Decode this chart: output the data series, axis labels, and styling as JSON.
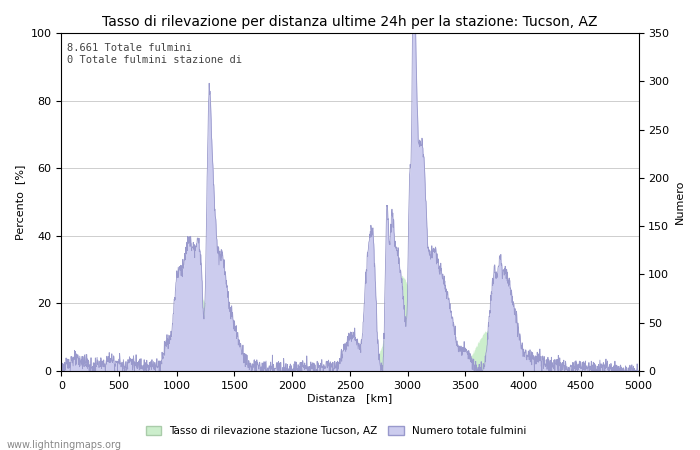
{
  "title": "Tasso di rilevazione per distanza ultime 24h per la stazione: Tucson, AZ",
  "xlabel": "Distanza   [km]",
  "ylabel_left": "Percento  [%]",
  "ylabel_right": "Numero",
  "annotation_text": "8.661 Totale fulmini\n0 Totale fulmini stazione di",
  "xlim": [
    0,
    5000
  ],
  "ylim_left": [
    0,
    100
  ],
  "ylim_right": [
    0,
    350
  ],
  "xticks": [
    0,
    500,
    1000,
    1500,
    2000,
    2500,
    3000,
    3500,
    4000,
    4500,
    5000
  ],
  "yticks_left": [
    0,
    20,
    40,
    60,
    80,
    100
  ],
  "yticks_right": [
    0,
    50,
    100,
    150,
    200,
    250,
    300,
    350
  ],
  "legend_label_green": "Tasso di rilevazione stazione Tucson, AZ",
  "legend_label_blue": "Numero totale fulmini",
  "watermark": "www.lightningmaps.org",
  "bg_color": "#ffffff",
  "grid_color": "#bbbbbb",
  "line_color_blue": "#9999cc",
  "fill_color_blue": "#ccccee",
  "fill_color_green": "#cceecc",
  "title_fontsize": 10,
  "axis_fontsize": 8,
  "tick_fontsize": 8
}
